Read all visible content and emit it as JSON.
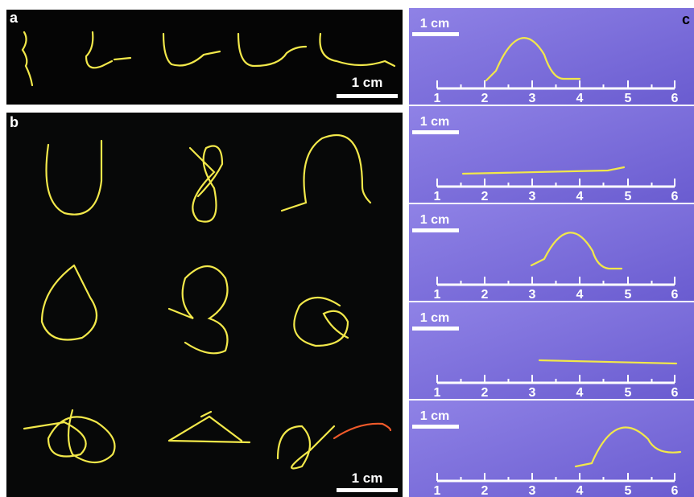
{
  "panels": {
    "a": {
      "label": "a",
      "scale_bar": "1 cm"
    },
    "b": {
      "label": "b",
      "scale_bar": "1 cm"
    },
    "c": {
      "label": "c",
      "rows": [
        {
          "scale_bar": "1 cm",
          "ruler": [
            1,
            2,
            3,
            4,
            5,
            6
          ]
        },
        {
          "scale_bar": "1 cm",
          "ruler": [
            1,
            2,
            3,
            4,
            5,
            6
          ]
        },
        {
          "scale_bar": "1 cm",
          "ruler": [
            1,
            2,
            3,
            4,
            5,
            6
          ]
        },
        {
          "scale_bar": "1 cm",
          "ruler": [
            1,
            2,
            3,
            4,
            5,
            6
          ]
        },
        {
          "scale_bar": "1 cm",
          "ruler": [
            1,
            2,
            3,
            4,
            5,
            6
          ]
        }
      ]
    }
  }
}
